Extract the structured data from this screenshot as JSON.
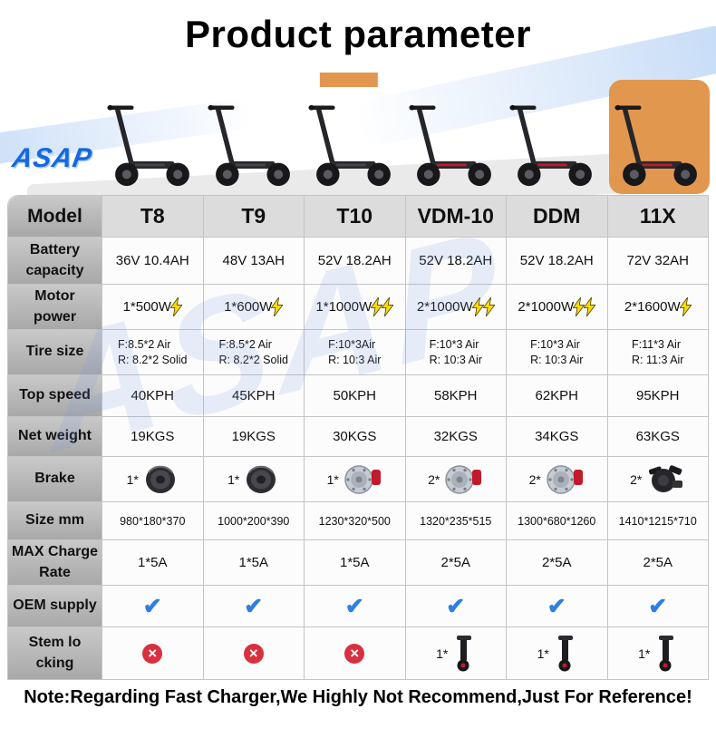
{
  "title": "Product parameter",
  "brand": "ASAP",
  "note": "Note:Regarding Fast Charger,We Highly Not Recommend,Just For Reference!",
  "colors": {
    "check_blue": "#2e7fe0",
    "cross_red": "#d93040",
    "bolt_yellow": "#ffd900",
    "highlight_orange": "#e2974f"
  },
  "icons": {
    "check_mark": "✔",
    "cross_mark": "×"
  },
  "products": [
    {
      "name": "T8",
      "accent": "#44444c"
    },
    {
      "name": "T9",
      "accent": "#44444c"
    },
    {
      "name": "T10",
      "accent": "#44444c",
      "highlight": "stripe"
    },
    {
      "name": "VDM-10",
      "accent": "#c11a2b"
    },
    {
      "name": "DDM",
      "accent": "#c11a2b"
    },
    {
      "name": "11X",
      "accent": "#c11a2b",
      "bg": "#e2974f"
    }
  ],
  "table": {
    "model_label": "Model",
    "models": [
      "T8",
      "T9",
      "T10",
      "VDM-10",
      "DDM",
      "11X"
    ],
    "rows": [
      {
        "type": "text",
        "label_lines": [
          "Battery",
          "capacity"
        ],
        "values": [
          "36V 10.4AH",
          "48V 13AH",
          "52V 18.2AH",
          "52V 18.2AH",
          "52V 18.2AH",
          "72V 32AH"
        ]
      },
      {
        "type": "motor",
        "label_lines": [
          "Motor",
          "power"
        ],
        "values": [
          "1*500W",
          "1*600W",
          "1*1000W",
          "2*1000W",
          "2*1000W",
          "2*1600W"
        ],
        "bolts": [
          1,
          1,
          2,
          2,
          2,
          1
        ]
      },
      {
        "type": "lines",
        "label_lines": [
          "Tire size"
        ],
        "values": [
          [
            "F:8.5*2 Air",
            "R:  8.2*2 Solid"
          ],
          [
            "F:8.5*2 Air",
            "R:  8.2*2 Solid"
          ],
          [
            "F:10*3Air",
            "R:  10:3 Air"
          ],
          [
            "F:10*3 Air",
            "R:  10:3 Air"
          ],
          [
            "F:10*3 Air",
            "R:  10:3 Air"
          ],
          [
            "F:11*3 Air",
            "R:  11:3 Air"
          ]
        ]
      },
      {
        "type": "text",
        "label_lines": [
          "Top speed"
        ],
        "values": [
          "40KPH",
          "45KPH",
          "50KPH",
          "58KPH",
          "62KPH",
          "95KPH"
        ]
      },
      {
        "type": "text",
        "label_lines": [
          "Net weight"
        ],
        "values": [
          "19KGS",
          "19KGS",
          "30KGS",
          "32KGS",
          "34KGS",
          "63KGS"
        ]
      },
      {
        "type": "brake",
        "label_lines": [
          "Brake"
        ],
        "values": [
          {
            "prefix": "1*",
            "icon": "drum-brake"
          },
          {
            "prefix": "1*",
            "icon": "drum-brake"
          },
          {
            "prefix": "1*",
            "icon": "disc-brake"
          },
          {
            "prefix": "2*",
            "icon": "disc-brake"
          },
          {
            "prefix": "2*",
            "icon": "disc-brake"
          },
          {
            "prefix": "2*",
            "icon": "hydraulic-brake"
          }
        ]
      },
      {
        "type": "text",
        "small": true,
        "label_lines": [
          "Size mm"
        ],
        "values": [
          "980*180*370",
          "1000*200*390",
          "1230*320*500",
          "1320*235*515",
          "1300*680*1260",
          "1410*1215*710"
        ]
      },
      {
        "type": "text",
        "label_lines": [
          "MAX Charge",
          "Rate"
        ],
        "values": [
          "1*5A",
          "1*5A",
          "1*5A",
          "2*5A",
          "2*5A",
          "2*5A"
        ]
      },
      {
        "type": "check",
        "label_lines": [
          "OEM supply"
        ],
        "values": [
          "check",
          "check",
          "check",
          "check",
          "check",
          "check"
        ]
      },
      {
        "type": "stem",
        "label_lines": [
          "Stem lo",
          "cking"
        ],
        "values": [
          {
            "icon": "cross"
          },
          {
            "icon": "cross"
          },
          {
            "icon": "cross"
          },
          {
            "prefix": "1*",
            "icon": "stem"
          },
          {
            "prefix": "1*",
            "icon": "stem"
          },
          {
            "prefix": "1*",
            "icon": "stem"
          }
        ]
      }
    ]
  }
}
